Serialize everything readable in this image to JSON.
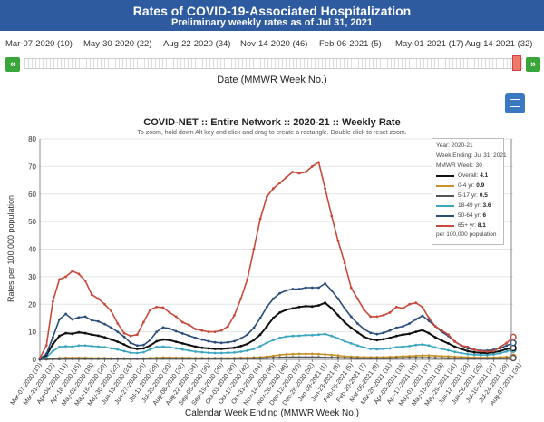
{
  "header": {
    "title": "Rates of COVID-19-Associated Hospitalization",
    "subtitle": "Preliminary weekly rates as of Jul 31, 2021"
  },
  "slider": {
    "labels": [
      "Mar-07-2020 (10)",
      "May-30-2020 (22)",
      "Aug-22-2020 (34)",
      "Nov-14-2020 (46)",
      "Feb-06-2021 (5)",
      "May-01-2021 (17)",
      "Aug-14-2021 (32)"
    ],
    "axis_title": "Date (MMWR Week No.)",
    "prev_label": "«",
    "next_label": "»"
  },
  "colors": {
    "banner": "#2e5aa0",
    "nav_button": "#3aa63a",
    "handle": "#f07a6a",
    "image_button": "#3a78c2"
  },
  "icons": {
    "image_button": "image-icon"
  },
  "chart_data": {
    "type": "line",
    "title": "COVID-NET :: Entire Network :: 2020-21 :: Weekly Rate",
    "subtitle": "To zoom, hold down Alt key and click and drag to create a rectangle. Double click to reset zoom.",
    "xlabel": "Calendar Week Ending (MMWR Week No.)",
    "ylabel": "Rates per 100,000 population",
    "ylim": [
      0,
      80
    ],
    "yticks": [
      0,
      10,
      20,
      30,
      40,
      50,
      60,
      70,
      80
    ],
    "grid": true,
    "x": [
      "Mar-07-2020 (10)",
      "Mar-14-2020 (11)",
      "Mar-21-2020 (12)",
      "Mar-28-2020 (13)",
      "Apr-04-2020 (14)",
      "Apr-11-2020 (15)",
      "Apr-18-2020 (16)",
      "Apr-25-2020 (17)",
      "May-02-2020 (18)",
      "May-09-2020 (19)",
      "May-16-2020 (20)",
      "May-23-2020 (21)",
      "May-30-2020 (22)",
      "Jun-06-2020 (23)",
      "Jun-13-2020 (24)",
      "Jun-20-2020 (25)",
      "Jun-27-2020 (26)",
      "Jul-04-2020 (27)",
      "Jul-11-2020 (28)",
      "Jul-18-2020 (29)",
      "Jul-25-2020 (30)",
      "Aug-01-2020 (31)",
      "Aug-08-2020 (32)",
      "Aug-15-2020 (33)",
      "Aug-22-2020 (34)",
      "Aug-29-2020 (35)",
      "Sep-05-2020 (36)",
      "Sep-12-2020 (37)",
      "Sep-19-2020 (38)",
      "Sep-26-2020 (39)",
      "Oct-03-2020 (40)",
      "Oct-10-2020 (41)",
      "Oct-17-2020 (42)",
      "Oct-24-2020 (43)",
      "Oct-31-2020 (44)",
      "Nov-07-2020 (45)",
      "Nov-14-2020 (46)",
      "Nov-21-2020 (47)",
      "Nov-28-2020 (48)",
      "Dec-05-2020 (49)",
      "Dec-12-2020 (50)",
      "Dec-19-2020 (51)",
      "Dec-26-2020 (52)",
      "Jan-02-2021 (53)",
      "Jan-09-2021 (1)",
      "Jan-16-2021 (2)",
      "Jan-23-2021 (3)",
      "Jan-30-2021 (4)",
      "Feb-06-2021 (5)",
      "Feb-13-2021 (6)",
      "Feb-20-2021 (7)",
      "Feb-27-2021 (8)",
      "Mar-06-2021 (9)",
      "Mar-13-2021 (10)",
      "Mar-20-2021 (11)",
      "Mar-27-2021 (12)",
      "Apr-03-2021 (13)",
      "Apr-10-2021 (14)",
      "Apr-17-2021 (15)",
      "Apr-24-2021 (16)",
      "May-01-2021 (17)",
      "May-08-2021 (18)",
      "May-15-2021 (19)",
      "May-22-2021 (20)",
      "May-29-2021 (21)",
      "Jun-05-2021 (22)",
      "Jun-12-2021 (23)",
      "Jun-19-2021 (24)",
      "Jun-26-2021 (25)",
      "Jul-03-2021 (26)",
      "Jul-10-2021 (27)",
      "Jul-17-2021 (28)",
      "Jul-24-2021 (29)",
      "Jul-31-2021 (30)"
    ],
    "xtick_labels": [
      "Mar-07-2020 (10)",
      "Mar-21-2020 (12)",
      "Apr-04-2020 (14)",
      "Apr-18-2020 (16)",
      "May-02-2020 (18)",
      "May-16-2020 (20)",
      "May-30-2020 (22)",
      "Jun-13-2020 (24)",
      "Jun-27-2020 (26)",
      "Jul-11-2020 (28)",
      "Jul-25-2020 (30)",
      "Aug-08-2020 (32)",
      "Aug-22-2020 (34)",
      "Sep-05-2020 (36)",
      "Sep-19-2020 (38)",
      "Oct-03-2020 (40)",
      "Oct-17-2020 (42)",
      "Oct-31-2020 (44)",
      "Nov-14-2020 (46)",
      "Nov-28-2020 (48)",
      "Dec-12-2020 (50)",
      "Dec-26-2020 (52)",
      "Jan-09-2021 (1)",
      "Jan-23-2021 (3)",
      "Feb-06-2021 (5)",
      "Feb-20-2021 (7)",
      "Mar-06-2021 (9)",
      "Mar-20-2021 (11)",
      "Apr-03-2021 (13)",
      "Apr-17-2021 (15)",
      "May-01-2021 (17)",
      "May-15-2021 (19)",
      "May-29-2021 (21)",
      "Jun-12-2021 (23)",
      "Jun-26-2021 (25)",
      "Jul-10-2021 (27)",
      "Jul-24-2021 (29)",
      "Aug-07-2021 (31)"
    ],
    "series": [
      {
        "name": "Overall",
        "color": "#111111",
        "values": [
          0.1,
          1.5,
          5.5,
          8.5,
          9.5,
          9.3,
          9.8,
          9.5,
          9,
          8.6,
          8,
          7.2,
          6.4,
          5.4,
          4.2,
          3.8,
          4,
          5,
          6.6,
          7.2,
          7,
          6.4,
          5.8,
          5.2,
          4.6,
          4.2,
          4,
          3.8,
          3.8,
          4,
          4.2,
          4.8,
          5.6,
          7,
          9,
          12,
          15,
          17,
          18,
          18.5,
          19,
          19.3,
          19.2,
          19.6,
          20.5,
          18.5,
          16,
          13.5,
          11.5,
          9.8,
          8.2,
          7.3,
          7,
          7.3,
          7.8,
          8.5,
          9,
          9.3,
          10,
          10.6,
          9.5,
          8,
          6.8,
          5.8,
          4.6,
          3.8,
          3,
          2.6,
          2.4,
          2.3,
          2.6,
          3,
          3.8,
          4.1
        ]
      },
      {
        "name": "0-4 yr",
        "color": "#c8922a",
        "values": [
          0,
          0.1,
          0.3,
          0.5,
          0.6,
          0.6,
          0.6,
          0.6,
          0.5,
          0.5,
          0.5,
          0.4,
          0.4,
          0.4,
          0.3,
          0.3,
          0.4,
          0.5,
          0.6,
          0.7,
          0.7,
          0.6,
          0.6,
          0.6,
          0.5,
          0.5,
          0.5,
          0.5,
          0.5,
          0.5,
          0.5,
          0.6,
          0.6,
          0.7,
          0.8,
          1,
          1.3,
          1.6,
          1.8,
          1.9,
          2,
          2,
          2,
          1.9,
          1.8,
          1.6,
          1.4,
          1.1,
          1,
          0.9,
          0.8,
          0.8,
          0.8,
          0.8,
          0.9,
          1,
          1.1,
          1.2,
          1.3,
          1.4,
          1.4,
          1.3,
          1.2,
          1.1,
          1,
          0.9,
          0.8,
          0.7,
          0.7,
          0.7,
          0.7,
          0.8,
          0.9,
          0.9
        ]
      },
      {
        "name": "5-17 yr",
        "color": "#555555",
        "values": [
          0,
          0,
          0.1,
          0.1,
          0.2,
          0.2,
          0.2,
          0.2,
          0.2,
          0.2,
          0.2,
          0.2,
          0.2,
          0.2,
          0.2,
          0.2,
          0.2,
          0.3,
          0.3,
          0.3,
          0.3,
          0.3,
          0.3,
          0.3,
          0.3,
          0.3,
          0.3,
          0.3,
          0.3,
          0.3,
          0.3,
          0.3,
          0.3,
          0.4,
          0.4,
          0.5,
          0.6,
          0.7,
          0.8,
          0.8,
          0.8,
          0.8,
          0.8,
          0.8,
          0.7,
          0.7,
          0.6,
          0.5,
          0.5,
          0.4,
          0.4,
          0.4,
          0.4,
          0.4,
          0.4,
          0.5,
          0.5,
          0.6,
          0.6,
          0.6,
          0.6,
          0.5,
          0.5,
          0.4,
          0.4,
          0.4,
          0.3,
          0.3,
          0.3,
          0.3,
          0.3,
          0.4,
          0.4,
          0.5
        ]
      },
      {
        "name": "18-49 yr",
        "color": "#3aa6c0",
        "values": [
          0.1,
          0.8,
          3,
          4.5,
          4.7,
          4.6,
          5,
          5,
          4.8,
          4.6,
          4.4,
          4,
          3.6,
          3,
          2.4,
          2.3,
          2.6,
          3.6,
          4.5,
          4.6,
          4.4,
          4,
          3.6,
          3.2,
          2.8,
          2.6,
          2.4,
          2.3,
          2.3,
          2.4,
          2.5,
          2.8,
          3.2,
          3.8,
          4.8,
          6,
          7,
          7.8,
          8.3,
          8.5,
          8.6,
          8.8,
          8.8,
          9,
          9.2,
          8.5,
          7.6,
          6.6,
          5.8,
          5,
          4.3,
          3.8,
          3.7,
          3.8,
          4,
          4.4,
          4.6,
          4.8,
          5.2,
          5.4,
          5,
          4.3,
          3.8,
          3.3,
          2.7,
          2.3,
          1.9,
          1.7,
          1.6,
          1.6,
          1.8,
          2.2,
          2.9,
          3.6
        ]
      },
      {
        "name": "50-64 yr",
        "color": "#2a4d7a",
        "values": [
          0.2,
          2,
          8,
          14.5,
          16.5,
          14.5,
          15.2,
          15.5,
          14.2,
          13.8,
          12.8,
          11.5,
          10,
          8.2,
          6,
          5,
          5.2,
          7,
          10,
          11.6,
          11.2,
          10.2,
          9.4,
          8.6,
          7.8,
          7.2,
          6.6,
          6.2,
          6,
          6.2,
          6.6,
          7.6,
          9,
          11.5,
          15,
          19,
          22,
          24,
          25,
          25.5,
          25.5,
          26,
          26,
          26,
          27.5,
          25,
          22,
          18.5,
          15.5,
          13,
          11,
          9.6,
          9.2,
          9.6,
          10.5,
          11.5,
          12,
          13,
          14.5,
          15.8,
          14,
          12,
          10,
          8.5,
          6.5,
          5,
          4,
          3.5,
          3.2,
          3.2,
          3.5,
          4,
          5,
          6
        ]
      },
      {
        "name": "65+ yr",
        "color": "#c84a3a",
        "values": [
          0.5,
          5,
          21,
          29,
          30,
          32,
          31,
          28.5,
          23.5,
          22,
          20,
          17.5,
          13,
          9.5,
          8.5,
          9,
          13.5,
          18,
          19,
          18.8,
          17,
          15.5,
          13.5,
          12.5,
          11,
          10.5,
          10,
          10,
          10.5,
          12,
          16,
          22,
          29,
          40,
          51,
          59,
          62,
          64,
          66,
          68,
          67.5,
          68,
          70,
          71.5,
          62,
          52,
          43,
          35,
          26,
          22,
          18,
          15.5,
          15.5,
          16,
          17,
          19,
          18.5,
          20,
          20.5,
          19,
          15,
          12,
          10.5,
          9,
          6.5,
          5,
          4.5,
          3.5,
          3,
          2.8,
          3,
          4.5,
          6,
          8.1
        ]
      }
    ],
    "tooltip": {
      "year": "Year: 2020-21",
      "week_ending": "Week Ending: Jul 31, 2021",
      "mmwr_week": "MMWR Week: 30",
      "values": [
        "4.1",
        "0.9",
        "0.5",
        "3.6",
        "6",
        "8.1"
      ],
      "footnote": "per 100,000 population"
    }
  },
  "footer": {
    "note": "Calendar Week Ending (MMWR Week No.)"
  }
}
